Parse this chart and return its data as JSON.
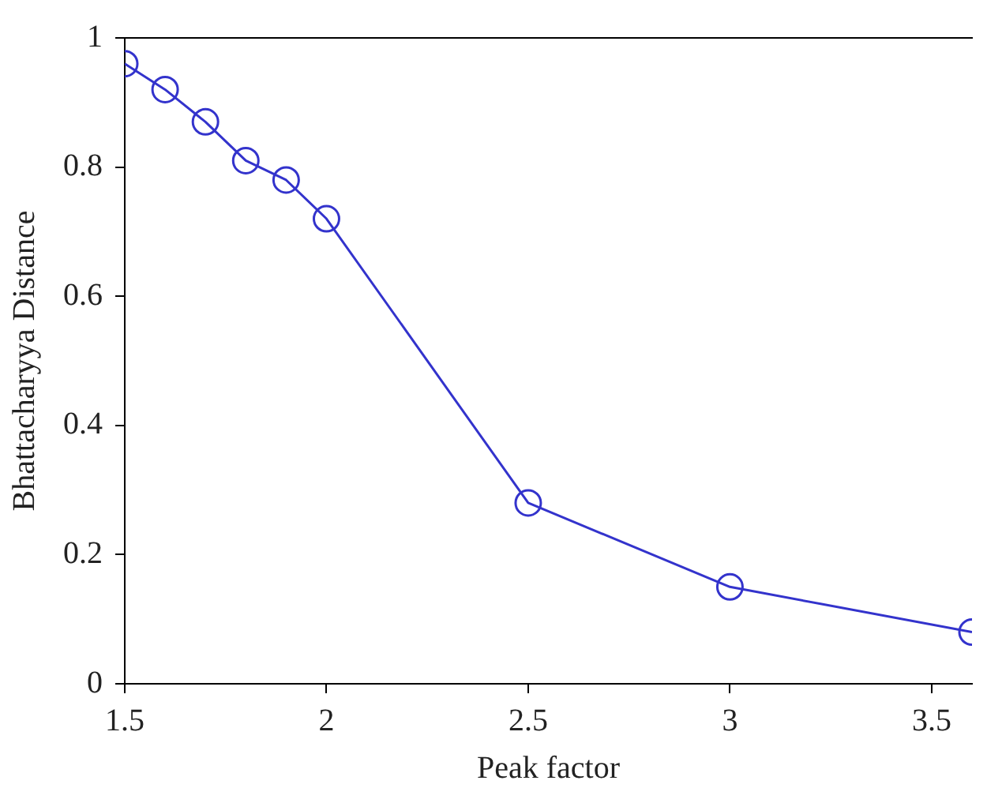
{
  "chart_data": {
    "type": "line",
    "xlabel": "Peak factor",
    "ylabel": "Bhattacharyya Distance",
    "x": [
      1.5,
      1.6,
      1.7,
      1.8,
      1.9,
      2.0,
      2.5,
      3.0,
      3.6
    ],
    "series": [
      {
        "color": "#3333cc",
        "values": [
          0.96,
          0.92,
          0.87,
          0.81,
          0.78,
          0.72,
          0.28,
          0.15,
          0.08
        ]
      }
    ],
    "xlim": [
      1.5,
      3.6
    ],
    "xticks": [
      1.5,
      2,
      2.5,
      3,
      3.5
    ],
    "ylim": [
      0,
      1
    ],
    "yticks": [
      0,
      0.2,
      0.4,
      0.6,
      0.8,
      1
    ],
    "grid": false,
    "legend": false,
    "marker": "circle",
    "line_style": "solid"
  }
}
